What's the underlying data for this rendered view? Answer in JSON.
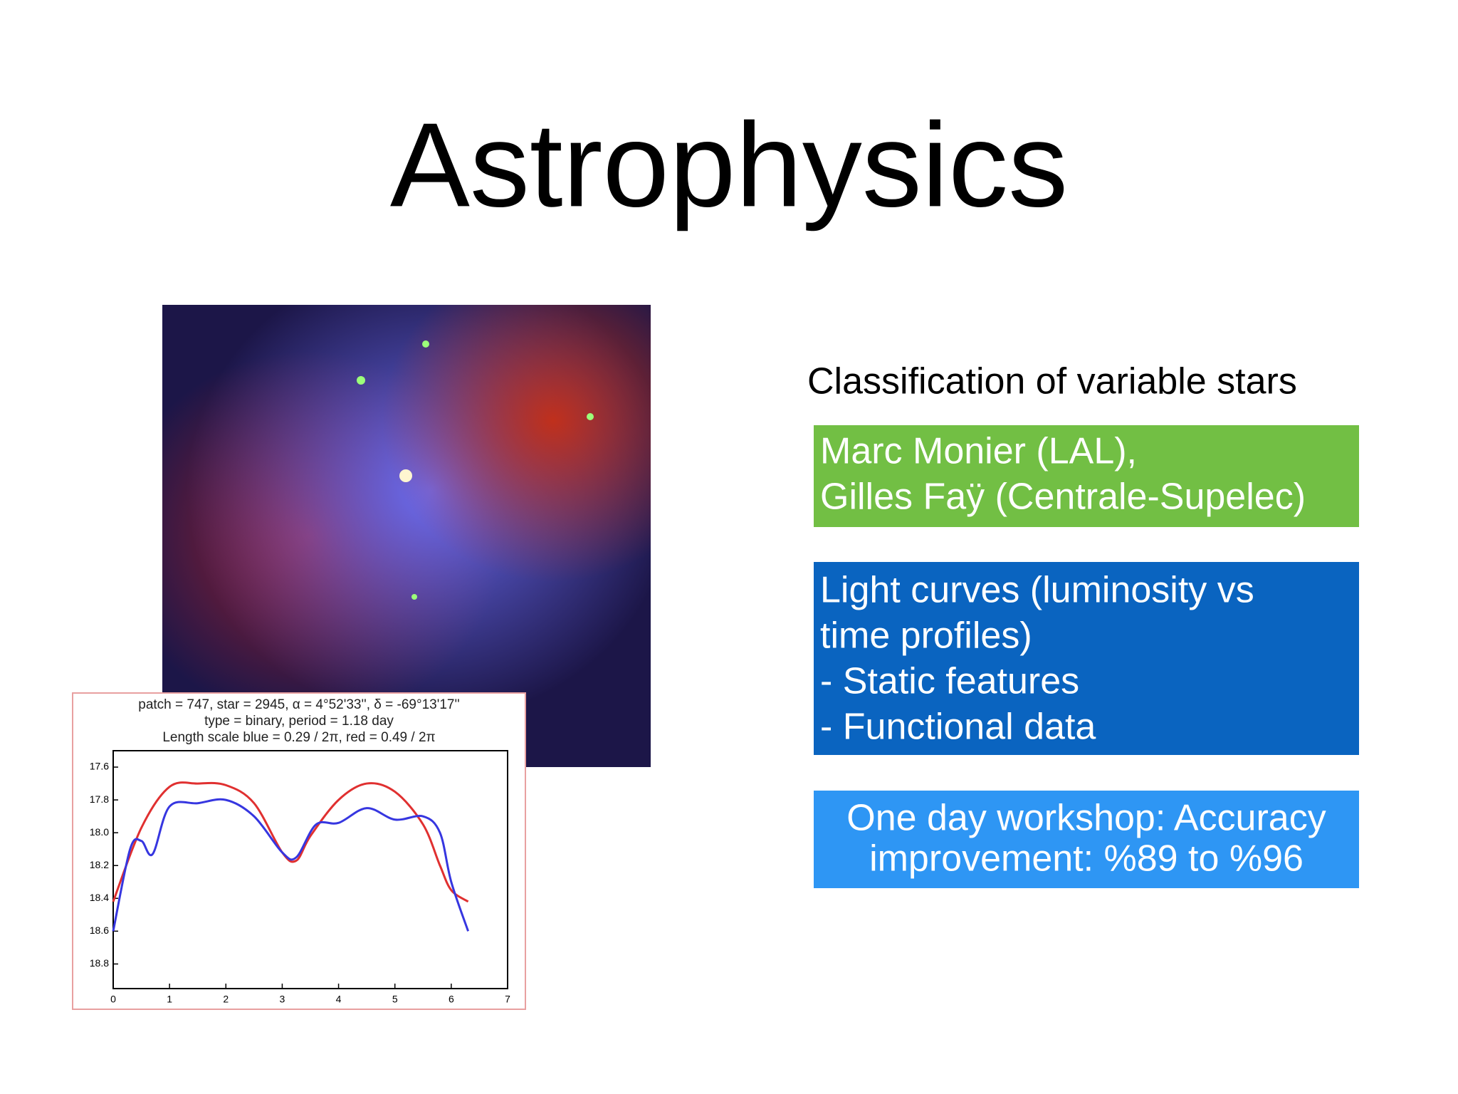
{
  "title": "Astrophysics",
  "subtitle": "Classification of variable stars",
  "boxes": [
    {
      "lines": [
        "Marc Monier (LAL),",
        "Gilles Faÿ (Centrale-Supelec)"
      ]
    },
    {
      "lines": [
        "Light curves (luminosity vs",
        "time profiles)",
        "- Static features",
        "- Functional data"
      ]
    },
    {
      "lines": [
        "One day workshop: Accuracy",
        "improvement: %89 to %96"
      ]
    }
  ],
  "plot": {
    "header": [
      "patch = 747,  star = 2945,  α = 4°52'33'',  δ = -69°13'17''",
      "type = binary,  period = 1.18 day",
      "Length scale blue = 0.29 / 2π,  red = 0.49 / 2π"
    ],
    "xlim": [
      0,
      7
    ],
    "ylim": [
      17.5,
      18.95
    ],
    "y_inverted": true,
    "xticks": [
      0,
      1,
      2,
      3,
      4,
      5,
      6,
      7
    ],
    "yticks": [
      17.6,
      17.8,
      {
        "value": 18,
        "label": "18.0"
      },
      18.2,
      18.4,
      18.6,
      18.8
    ],
    "series": [
      {
        "color": "#e03030",
        "x": [
          0,
          0.5,
          1,
          1.5,
          2,
          2.5,
          3,
          3.25,
          3.5,
          4,
          4.5,
          5,
          5.5,
          5.8,
          6,
          6.3
        ],
        "values": [
          18.42,
          17.97,
          17.72,
          17.7,
          17.71,
          17.82,
          18.12,
          18.17,
          18.02,
          17.8,
          17.7,
          17.75,
          17.95,
          18.2,
          18.35,
          18.42
        ]
      },
      {
        "color": "#3636e0",
        "x": [
          0,
          0.3,
          0.5,
          0.7,
          1,
          1.5,
          2,
          2.5,
          3,
          3.25,
          3.6,
          4,
          4.5,
          5,
          5.5,
          5.8,
          6,
          6.3
        ],
        "values": [
          18.6,
          18.1,
          18.05,
          18.13,
          17.84,
          17.82,
          17.8,
          17.9,
          18.12,
          18.15,
          17.95,
          17.94,
          17.85,
          17.92,
          17.9,
          18.0,
          18.3,
          18.6
        ]
      }
    ]
  }
}
